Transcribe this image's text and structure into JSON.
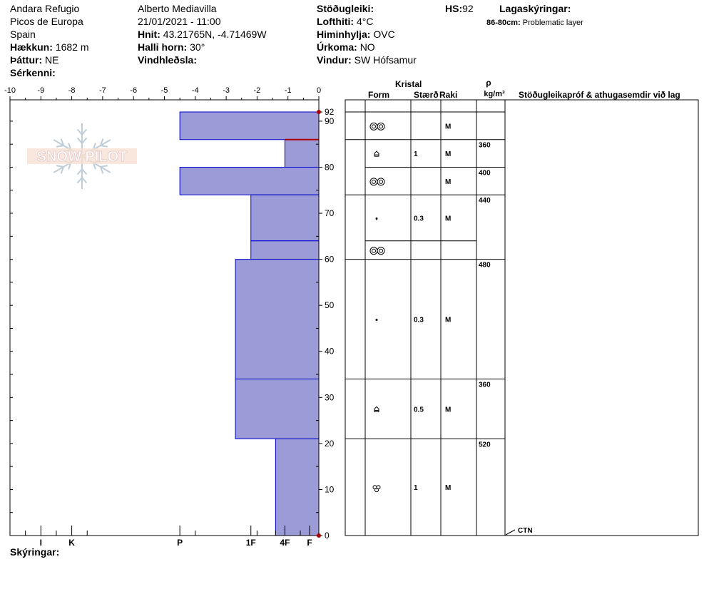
{
  "header": {
    "location": "Andara Refugio",
    "range": "Picos de Europa",
    "country": "Spain",
    "elevation_label": "Hækkun:",
    "elevation_value": "1682 m",
    "aspect_label": "Þáttur:",
    "aspect_value": "NE",
    "features_label": "Sérkenni:",
    "observer": "Alberto Mediavilla",
    "datetime": "21/01/2021 - 11:00",
    "coords_label": "Hnit:",
    "coords_value": "43.21765N, -4.71469W",
    "slope_label": "Halli horn:",
    "slope_value": "30°",
    "wind_loading_label": "Vindhleðsla:",
    "stability_label": "Stöðugleiki:",
    "air_temp_label": "Lofthiti:",
    "air_temp_value": "4°C",
    "sky_label": "Himinhylja:",
    "sky_value": "OVC",
    "precip_label": "Úrkoma:",
    "precip_value": "NO",
    "wind_label": "Vindur:",
    "wind_value": "SW Hófsamur",
    "hs_label": "HS:",
    "hs_value": "92",
    "layer_notes_label": "Lagaskýringar:",
    "layer_note_range": "86-80cm:",
    "layer_note_text": "Problematic layer"
  },
  "logo_text": "SNOW PILOT",
  "columns": {
    "kristal": "Kristal",
    "form": "Form",
    "size": "Stærð",
    "moisture": "Raki",
    "rho": "ρ",
    "density_unit": "kg/m³",
    "stability_tests": "Stöðugleikapróf & athugasemdir við lag"
  },
  "ctn_label": "CTN",
  "comments_label": "Skýringar:",
  "colors": {
    "layer_fill": "#9b9bd7",
    "layer_edge": "#0000cc",
    "marker": "#aa0000",
    "problem_line": "#aa0000"
  },
  "chart_data": {
    "type": "bar",
    "title": "",
    "xlim": [
      -10,
      0
    ],
    "x_ticks": [
      -10,
      -9,
      -8,
      -7,
      -6,
      -5,
      -4,
      -3,
      -2,
      -1,
      0
    ],
    "hardness_labels": [
      "I",
      "K",
      "P",
      "1F",
      "4F",
      "F"
    ],
    "ylim": [
      0,
      92
    ],
    "y_ticks": [
      0,
      10,
      20,
      30,
      40,
      50,
      60,
      70,
      80,
      90,
      92
    ],
    "problematic_layer": [
      80,
      86
    ],
    "layers": [
      {
        "top": 92,
        "bottom": 86,
        "hardness": -4.5,
        "form": "grain",
        "size": "",
        "moisture": "M"
      },
      {
        "top": 86,
        "bottom": 80,
        "hardness": -1.1,
        "form": "facet",
        "size": "1",
        "moisture": "M"
      },
      {
        "top": 80,
        "bottom": 74,
        "hardness": -4.5,
        "form": "grain",
        "size": "",
        "moisture": "M"
      },
      {
        "top": 74,
        "bottom": 64,
        "hardness": -2.2,
        "form": "dot",
        "size": "0.3",
        "moisture": "M"
      },
      {
        "top": 64,
        "bottom": 60,
        "hardness": -2.2,
        "form": "grain",
        "size": "",
        "moisture": ""
      },
      {
        "top": 60,
        "bottom": 34,
        "hardness": -2.7,
        "form": "dot",
        "size": "0.3",
        "moisture": "M"
      },
      {
        "top": 34,
        "bottom": 21,
        "hardness": -2.7,
        "form": "facet",
        "size": "0.5",
        "moisture": "M"
      },
      {
        "top": 21,
        "bottom": 0,
        "hardness": -1.4,
        "form": "melt",
        "size": "1",
        "moisture": "M"
      }
    ],
    "densities": [
      {
        "top": 86,
        "bottom": 80,
        "value": "360"
      },
      {
        "top": 80,
        "bottom": 74,
        "value": "400"
      },
      {
        "top": 74,
        "bottom": 60,
        "value": "440"
      },
      {
        "top": 60,
        "bottom": 34,
        "value": "480"
      },
      {
        "top": 34,
        "bottom": 21,
        "value": "360"
      },
      {
        "top": 21,
        "bottom": 0,
        "value": "520"
      }
    ]
  }
}
